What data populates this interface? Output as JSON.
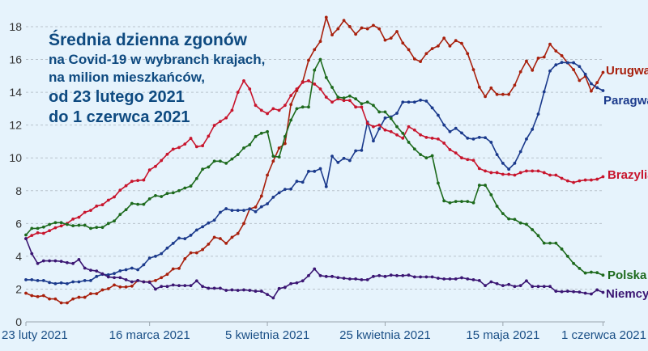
{
  "chart_data": {
    "type": "line",
    "title_lines": [
      "Średnia dzienna zgonów",
      "na Covid-19 w wybranch krajach,",
      "na milion mieszkańców,",
      "od 23 lutego 2021",
      "do 1 czerwca 2021"
    ],
    "x_start": "2021-02-23",
    "x_end": "2021-06-01",
    "x_step": "1 day",
    "x_ticks": [
      "23 luty 2021",
      "16 marca 2021",
      "5 kwietnia 2021",
      "25 kwietnia 2021",
      "15 maja 2021",
      "1 czerwca 2021"
    ],
    "x_tick_days": [
      0,
      21,
      41,
      61,
      81,
      98
    ],
    "y_ticks": [
      0,
      2,
      4,
      6,
      8,
      10,
      12,
      14,
      16,
      18
    ],
    "ylim": [
      0,
      18
    ],
    "grid": "horizontal dashed",
    "series": [
      {
        "name": "Urugwaj",
        "color": "#a8200d",
        "values": [
          1.75,
          1.6,
          1.54,
          1.6,
          1.4,
          1.4,
          1.16,
          1.16,
          1.4,
          1.5,
          1.5,
          1.72,
          1.72,
          1.95,
          2.02,
          2.25,
          2.13,
          2.13,
          2.18,
          2.52,
          2.44,
          2.44,
          2.52,
          2.7,
          2.9,
          3.23,
          3.26,
          3.85,
          4.21,
          4.21,
          4.41,
          4.74,
          5.16,
          5.08,
          4.79,
          5.16,
          5.39,
          6.0,
          6.89,
          7.0,
          7.67,
          8.95,
          9.8,
          10.6,
          10.87,
          13.25,
          14.1,
          14.64,
          15.95,
          16.6,
          17.1,
          18.57,
          17.5,
          17.87,
          18.38,
          18.0,
          17.54,
          17.92,
          17.87,
          18.08,
          17.87,
          17.18,
          17.3,
          17.7,
          17.0,
          16.6,
          16.03,
          15.87,
          16.36,
          16.66,
          16.82,
          17.3,
          16.82,
          17.15,
          16.98,
          16.36,
          15.38,
          14.31,
          13.74,
          14.26,
          13.87,
          13.87,
          13.87,
          14.43,
          15.25,
          15.9,
          15.34,
          16.08,
          16.15,
          16.93,
          16.52,
          16.23,
          15.79,
          15.38,
          14.72,
          14.97,
          14.07,
          14.59,
          15.21
        ]
      },
      {
        "name": "Paragwaj",
        "color": "#1b3a8c",
        "values": [
          2.57,
          2.57,
          2.52,
          2.52,
          2.4,
          2.33,
          2.38,
          2.33,
          2.44,
          2.44,
          2.52,
          2.52,
          2.77,
          2.9,
          2.87,
          2.95,
          3.11,
          3.18,
          3.28,
          3.18,
          3.48,
          3.89,
          4.0,
          4.16,
          4.5,
          4.79,
          5.11,
          5.07,
          5.28,
          5.6,
          5.8,
          6.03,
          6.2,
          6.68,
          6.9,
          6.8,
          6.8,
          6.8,
          6.89,
          6.72,
          7.02,
          7.2,
          7.6,
          7.87,
          8.08,
          8.1,
          8.57,
          8.52,
          9.18,
          9.18,
          9.34,
          8.25,
          10.1,
          9.72,
          9.97,
          9.84,
          10.43,
          10.46,
          12.18,
          11.03,
          11.77,
          12.43,
          12.5,
          12.72,
          13.4,
          13.4,
          13.4,
          13.52,
          13.46,
          13.05,
          12.6,
          12.0,
          11.6,
          11.8,
          11.52,
          11.2,
          11.15,
          11.25,
          11.23,
          10.95,
          10.2,
          9.67,
          9.31,
          9.67,
          10.38,
          11.15,
          11.74,
          12.67,
          14.03,
          15.3,
          15.67,
          15.82,
          15.8,
          15.8,
          15.57,
          15.1,
          14.52,
          14.28,
          14.1
        ]
      },
      {
        "name": "Brazylia",
        "color": "#c8152d",
        "values": [
          5.07,
          5.27,
          5.43,
          5.4,
          5.56,
          5.74,
          5.85,
          6.0,
          6.27,
          6.38,
          6.68,
          6.8,
          7.06,
          7.14,
          7.42,
          7.62,
          8.03,
          8.3,
          8.57,
          8.62,
          8.65,
          9.26,
          9.48,
          9.84,
          10.22,
          10.53,
          10.63,
          10.84,
          11.19,
          10.68,
          10.74,
          11.32,
          11.98,
          12.22,
          12.44,
          12.9,
          14.0,
          14.7,
          14.2,
          13.2,
          12.9,
          12.7,
          13.0,
          12.9,
          13.2,
          13.8,
          14.2,
          14.6,
          14.7,
          14.5,
          14.2,
          13.7,
          13.4,
          13.6,
          13.5,
          13.5,
          13.1,
          13.1,
          12.1,
          11.9,
          12.0,
          11.7,
          11.6,
          11.4,
          11.2,
          11.9,
          11.7,
          11.4,
          11.25,
          11.2,
          11.15,
          10.9,
          10.5,
          10.3,
          10.0,
          9.9,
          9.85,
          9.35,
          9.2,
          9.1,
          9.1,
          9.0,
          9.0,
          8.95,
          9.1,
          9.2,
          9.2,
          9.2,
          9.1,
          8.95,
          8.95,
          8.75,
          8.6,
          8.5,
          8.6,
          8.65,
          8.65,
          8.7,
          8.85
        ]
      },
      {
        "name": "Polska",
        "color": "#1d6a1d",
        "values": [
          5.3,
          5.7,
          5.7,
          5.78,
          5.94,
          6.05,
          6.05,
          5.94,
          5.86,
          5.89,
          5.89,
          5.7,
          5.76,
          5.76,
          6.0,
          6.15,
          6.55,
          6.84,
          7.22,
          7.17,
          7.17,
          7.5,
          7.7,
          7.64,
          7.83,
          7.87,
          8.0,
          8.16,
          8.28,
          8.74,
          9.31,
          9.44,
          9.8,
          9.8,
          9.67,
          9.93,
          10.2,
          10.6,
          10.8,
          11.3,
          11.5,
          11.6,
          10.1,
          10.05,
          11.3,
          12.3,
          13.0,
          13.1,
          13.1,
          15.35,
          16.0,
          14.9,
          14.3,
          13.7,
          13.65,
          13.77,
          13.6,
          13.3,
          13.4,
          13.2,
          12.8,
          12.8,
          12.4,
          11.9,
          11.5,
          10.95,
          10.54,
          10.2,
          10.0,
          10.13,
          8.46,
          7.38,
          7.26,
          7.34,
          7.34,
          7.34,
          7.26,
          8.33,
          8.33,
          7.75,
          7.05,
          6.6,
          6.28,
          6.25,
          6.03,
          5.95,
          5.62,
          5.26,
          4.8,
          4.8,
          4.8,
          4.44,
          4.0,
          3.56,
          3.26,
          2.98,
          3.03,
          3.0,
          2.85
        ]
      },
      {
        "name": "Niemcy",
        "color": "#3b1673",
        "values": [
          5.08,
          4.16,
          3.56,
          3.72,
          3.72,
          3.72,
          3.69,
          3.61,
          3.56,
          3.8,
          3.28,
          3.15,
          3.1,
          2.93,
          2.74,
          2.7,
          2.7,
          2.57,
          2.44,
          2.52,
          2.44,
          2.41,
          2.0,
          2.16,
          2.16,
          2.25,
          2.21,
          2.21,
          2.21,
          2.5,
          2.16,
          2.05,
          2.05,
          2.05,
          1.92,
          1.95,
          1.92,
          1.95,
          1.92,
          1.87,
          1.87,
          1.67,
          1.46,
          2.03,
          2.11,
          2.33,
          2.38,
          2.5,
          2.82,
          3.23,
          2.82,
          2.77,
          2.77,
          2.7,
          2.66,
          2.62,
          2.62,
          2.57,
          2.57,
          2.77,
          2.82,
          2.77,
          2.85,
          2.82,
          2.82,
          2.85,
          2.74,
          2.74,
          2.74,
          2.74,
          2.66,
          2.62,
          2.62,
          2.62,
          2.69,
          2.62,
          2.57,
          2.52,
          2.21,
          2.44,
          2.33,
          2.21,
          2.28,
          2.16,
          2.21,
          2.5,
          2.16,
          2.16,
          2.16,
          2.16,
          1.87,
          1.84,
          1.87,
          1.84,
          1.82,
          1.75,
          1.7,
          1.95,
          1.8
        ]
      }
    ]
  }
}
